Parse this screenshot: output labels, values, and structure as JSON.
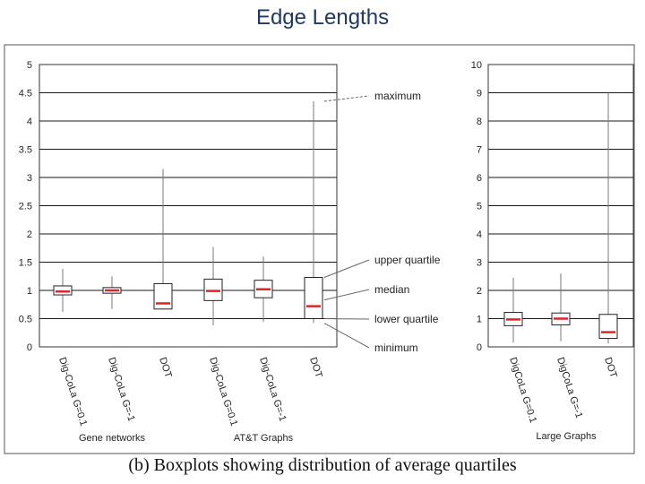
{
  "title": "Edge Lengths",
  "caption": "(b)  Boxplots showing distribution of average quartiles",
  "annotations": [
    "maximum",
    "upper quartile",
    "median",
    "lower quartile",
    "minimum"
  ],
  "colors": {
    "median": "#d9262c",
    "box": "#222222",
    "grid": "#1a1a1a",
    "title": "#1f3864"
  },
  "chart_data": [
    {
      "type": "box",
      "ylim": [
        0,
        5
      ],
      "yticks": [
        "0",
        "0.5",
        "1",
        "1.5",
        "2",
        "2.5",
        "3",
        "3.5",
        "4",
        "4.5",
        "5"
      ],
      "grid": "horizontal",
      "categories": [
        "Dig-CoLa G=0.1",
        "Dig-CoLa G=-1",
        "DOT",
        "Dig-CoLa G=0.1",
        "Dig-CoLa G=-1",
        "DOT"
      ],
      "group_labels": [
        "Gene networks",
        "AT&T Graphs"
      ],
      "boxes": [
        {
          "min": 0.62,
          "q1": 0.92,
          "median": 0.98,
          "q3": 1.08,
          "max": 1.38
        },
        {
          "min": 0.67,
          "q1": 0.95,
          "median": 1.0,
          "q3": 1.05,
          "max": 1.25
        },
        {
          "min": 0.66,
          "q1": 0.67,
          "median": 0.77,
          "q3": 1.12,
          "max": 3.15
        },
        {
          "min": 0.38,
          "q1": 0.82,
          "median": 0.99,
          "q3": 1.2,
          "max": 1.77
        },
        {
          "min": 0.44,
          "q1": 0.87,
          "median": 1.02,
          "q3": 1.18,
          "max": 1.6
        },
        {
          "min": 0.42,
          "q1": 0.5,
          "median": 0.72,
          "q3": 1.23,
          "max": 4.35
        }
      ]
    },
    {
      "type": "box",
      "ylim": [
        0,
        10
      ],
      "yticks": [
        "0",
        "1",
        "2",
        "3",
        "4",
        "5",
        "6",
        "7",
        "8",
        "9",
        "10"
      ],
      "grid": "horizontal",
      "categories": [
        "DigCoLa G=0.1",
        "DigCoLa G=-1",
        "DOT"
      ],
      "group_labels": [
        "Large Graphs"
      ],
      "boxes": [
        {
          "min": 0.15,
          "q1": 0.75,
          "median": 0.97,
          "q3": 1.22,
          "max": 2.45
        },
        {
          "min": 0.2,
          "q1": 0.78,
          "median": 1.0,
          "q3": 1.2,
          "max": 2.6
        },
        {
          "min": 0.12,
          "q1": 0.3,
          "median": 0.52,
          "q3": 1.15,
          "max": 9.0
        }
      ]
    }
  ]
}
